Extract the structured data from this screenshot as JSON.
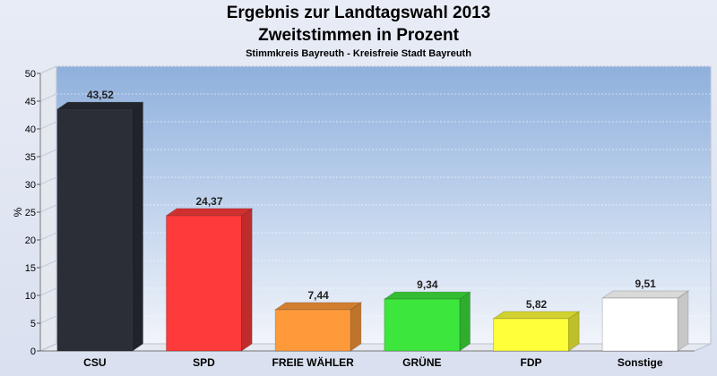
{
  "chart_data": {
    "type": "bar",
    "title": "Ergebnis zur Landtagswahl 2013",
    "title2": "Zweitstimmen in Prozent",
    "subtitle": "Stimmkreis Bayreuth - Kreisfreie Stadt Bayreuth",
    "ylabel": "%",
    "ylim": [
      0,
      50
    ],
    "yticks": [
      "0",
      "5",
      "10",
      "15",
      "20",
      "25",
      "30",
      "35",
      "40",
      "45",
      "50"
    ],
    "categories": [
      "CSU",
      "SPD",
      "FREIE WÄHLER",
      "GRÜNE",
      "FDP",
      "Sonstige"
    ],
    "values": [
      43.52,
      24.37,
      7.44,
      9.34,
      5.82,
      9.51
    ],
    "value_labels": [
      "43,52",
      "24,37",
      "7,44",
      "9,34",
      "5,82",
      "9,51"
    ],
    "colors": [
      "#2b2e36",
      "#ff3a3a",
      "#ff9a3a",
      "#3de63d",
      "#ffff3a",
      "#ffffff"
    ],
    "grid": true
  }
}
